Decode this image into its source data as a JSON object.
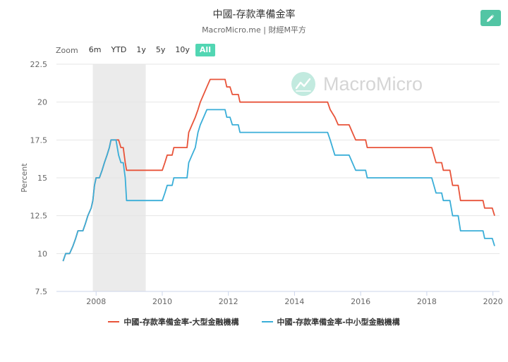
{
  "header": {
    "title": "中國-存款準備金率",
    "subtitle": "MacroMicro.me | 財經M平方"
  },
  "toolbar": {
    "edit_icon": "pencil-icon",
    "zoom_label": "Zoom",
    "ranges": [
      "6m",
      "YTD",
      "1y",
      "5y",
      "10y",
      "All"
    ],
    "active_range": "All"
  },
  "watermark": {
    "text": "MacroMicro"
  },
  "colors": {
    "accent": "#52c5a4",
    "series_large": "#e8543a",
    "series_small": "#3aaed8",
    "recession": "#ebebeb"
  },
  "chart_data": {
    "type": "line",
    "title": "中國-存款準備金率",
    "xlabel": "",
    "ylabel": "Percent",
    "xlim": [
      2006.8,
      2020.2
    ],
    "ylim": [
      7.5,
      22.5
    ],
    "yticks": [
      7.5,
      10,
      12.5,
      15,
      17.5,
      20,
      22.5
    ],
    "yticks_labels": [
      "7.5",
      "10",
      "12.5",
      "15",
      "17.5",
      "20",
      "22.5"
    ],
    "xticks": [
      2008,
      2010,
      2012,
      2014,
      2016,
      2018,
      2020
    ],
    "grid": true,
    "legend_position": "bottom",
    "shaded_periods": [
      [
        2007.9,
        2009.5
      ]
    ],
    "series": [
      {
        "name": "中國-存款準備金率-大型金融機構",
        "points": [
          [
            2007.0,
            9.5
          ],
          [
            2007.08,
            10.0
          ],
          [
            2007.2,
            10.0
          ],
          [
            2007.3,
            10.5
          ],
          [
            2007.38,
            11.0
          ],
          [
            2007.45,
            11.5
          ],
          [
            2007.6,
            11.5
          ],
          [
            2007.68,
            12.0
          ],
          [
            2007.75,
            12.5
          ],
          [
            2007.85,
            13.0
          ],
          [
            2007.9,
            13.5
          ],
          [
            2007.95,
            14.5
          ],
          [
            2008.0,
            15.0
          ],
          [
            2008.1,
            15.0
          ],
          [
            2008.18,
            15.5
          ],
          [
            2008.25,
            16.0
          ],
          [
            2008.33,
            16.5
          ],
          [
            2008.4,
            17.0
          ],
          [
            2008.45,
            17.5
          ],
          [
            2008.68,
            17.5
          ],
          [
            2008.75,
            17.0
          ],
          [
            2008.82,
            17.0
          ],
          [
            2008.88,
            16.0
          ],
          [
            2008.92,
            15.5
          ],
          [
            2009.5,
            15.5
          ],
          [
            2010.0,
            15.5
          ],
          [
            2010.08,
            16.0
          ],
          [
            2010.15,
            16.5
          ],
          [
            2010.3,
            16.5
          ],
          [
            2010.35,
            17.0
          ],
          [
            2010.75,
            17.0
          ],
          [
            2010.8,
            18.0
          ],
          [
            2010.9,
            18.5
          ],
          [
            2011.0,
            19.0
          ],
          [
            2011.08,
            19.5
          ],
          [
            2011.15,
            20.0
          ],
          [
            2011.25,
            20.5
          ],
          [
            2011.35,
            21.0
          ],
          [
            2011.45,
            21.5
          ],
          [
            2011.9,
            21.5
          ],
          [
            2011.95,
            21.0
          ],
          [
            2012.05,
            21.0
          ],
          [
            2012.12,
            20.5
          ],
          [
            2012.3,
            20.5
          ],
          [
            2012.35,
            20.0
          ],
          [
            2015.0,
            20.0
          ],
          [
            2015.08,
            19.5
          ],
          [
            2015.22,
            19.0
          ],
          [
            2015.32,
            18.5
          ],
          [
            2015.65,
            18.5
          ],
          [
            2015.75,
            18.0
          ],
          [
            2015.85,
            17.5
          ],
          [
            2016.15,
            17.5
          ],
          [
            2016.2,
            17.0
          ],
          [
            2018.15,
            17.0
          ],
          [
            2018.28,
            16.0
          ],
          [
            2018.45,
            16.0
          ],
          [
            2018.5,
            15.5
          ],
          [
            2018.7,
            15.5
          ],
          [
            2018.78,
            14.5
          ],
          [
            2018.95,
            14.5
          ],
          [
            2019.02,
            13.5
          ],
          [
            2019.7,
            13.5
          ],
          [
            2019.75,
            13.0
          ],
          [
            2019.98,
            13.0
          ],
          [
            2020.05,
            12.5
          ]
        ]
      },
      {
        "name": "中國-存款準備金率-中小型金融機構",
        "points": [
          [
            2007.0,
            9.5
          ],
          [
            2007.08,
            10.0
          ],
          [
            2007.2,
            10.0
          ],
          [
            2007.3,
            10.5
          ],
          [
            2007.38,
            11.0
          ],
          [
            2007.45,
            11.5
          ],
          [
            2007.6,
            11.5
          ],
          [
            2007.68,
            12.0
          ],
          [
            2007.75,
            12.5
          ],
          [
            2007.85,
            13.0
          ],
          [
            2007.9,
            13.5
          ],
          [
            2007.95,
            14.5
          ],
          [
            2008.0,
            15.0
          ],
          [
            2008.1,
            15.0
          ],
          [
            2008.18,
            15.5
          ],
          [
            2008.25,
            16.0
          ],
          [
            2008.33,
            16.5
          ],
          [
            2008.4,
            17.0
          ],
          [
            2008.45,
            17.5
          ],
          [
            2008.6,
            17.5
          ],
          [
            2008.68,
            16.5
          ],
          [
            2008.75,
            16.0
          ],
          [
            2008.82,
            16.0
          ],
          [
            2008.88,
            15.0
          ],
          [
            2008.92,
            13.5
          ],
          [
            2009.5,
            13.5
          ],
          [
            2010.0,
            13.5
          ],
          [
            2010.08,
            14.0
          ],
          [
            2010.15,
            14.5
          ],
          [
            2010.3,
            14.5
          ],
          [
            2010.35,
            15.0
          ],
          [
            2010.75,
            15.0
          ],
          [
            2010.8,
            16.0
          ],
          [
            2010.9,
            16.5
          ],
          [
            2011.0,
            17.0
          ],
          [
            2011.08,
            18.0
          ],
          [
            2011.15,
            18.5
          ],
          [
            2011.25,
            19.0
          ],
          [
            2011.35,
            19.5
          ],
          [
            2011.9,
            19.5
          ],
          [
            2011.95,
            19.0
          ],
          [
            2012.05,
            19.0
          ],
          [
            2012.12,
            18.5
          ],
          [
            2012.3,
            18.5
          ],
          [
            2012.35,
            18.0
          ],
          [
            2015.0,
            18.0
          ],
          [
            2015.08,
            17.5
          ],
          [
            2015.22,
            16.5
          ],
          [
            2015.65,
            16.5
          ],
          [
            2015.75,
            16.0
          ],
          [
            2015.85,
            15.5
          ],
          [
            2016.15,
            15.5
          ],
          [
            2016.2,
            15.0
          ],
          [
            2018.15,
            15.0
          ],
          [
            2018.28,
            14.0
          ],
          [
            2018.45,
            14.0
          ],
          [
            2018.5,
            13.5
          ],
          [
            2018.7,
            13.5
          ],
          [
            2018.78,
            12.5
          ],
          [
            2018.95,
            12.5
          ],
          [
            2019.02,
            11.5
          ],
          [
            2019.7,
            11.5
          ],
          [
            2019.75,
            11.0
          ],
          [
            2019.98,
            11.0
          ],
          [
            2020.05,
            10.5
          ]
        ]
      }
    ]
  }
}
